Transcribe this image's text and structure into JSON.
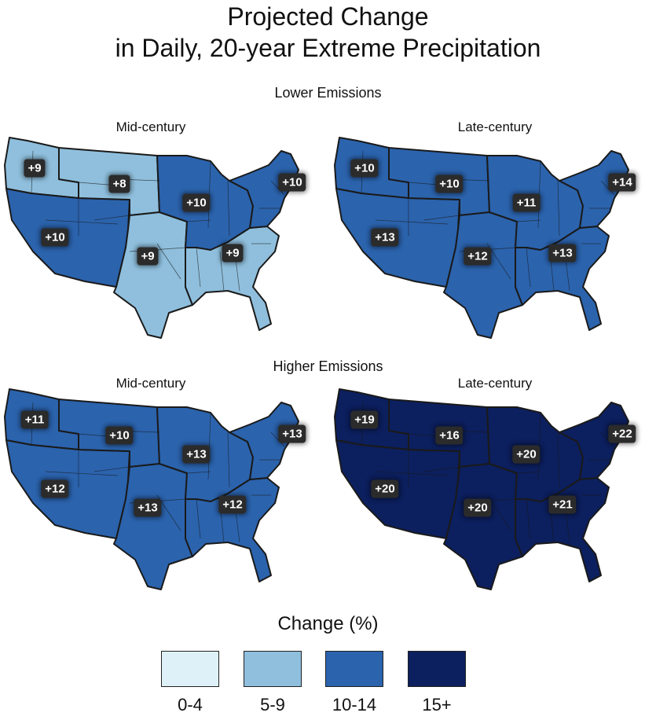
{
  "title_line1": "Projected Change",
  "title_line2": "in Daily, 20-year Extreme Precipitation",
  "scenarios": {
    "lower": "Lower Emissions",
    "higher": "Higher Emissions"
  },
  "periods": {
    "mid": "Mid-century",
    "late": "Late-century"
  },
  "colors": {
    "c0_4": "#dff1f8",
    "c5_9": "#8fbfdd",
    "c10_14": "#2b63ad",
    "c15": "#0c1f5e"
  },
  "maps": {
    "lower_mid": {
      "regions": {
        "northwest": "c5_9",
        "southwest": "c10_14",
        "great_plains_north": "c5_9",
        "great_plains_south": "c5_9",
        "midwest": "c10_14",
        "southeast": "c5_9",
        "northeast": "c10_14"
      },
      "labels": {
        "northwest": "+9",
        "southwest": "+10",
        "great_plains_north": "+8",
        "great_plains_south": "+9",
        "midwest": "+10",
        "southeast": "+9",
        "northeast": "+10"
      }
    },
    "lower_late": {
      "regions": {
        "northwest": "c10_14",
        "southwest": "c10_14",
        "great_plains_north": "c10_14",
        "great_plains_south": "c10_14",
        "midwest": "c10_14",
        "southeast": "c10_14",
        "northeast": "c10_14"
      },
      "labels": {
        "northwest": "+10",
        "southwest": "+13",
        "great_plains_north": "+10",
        "great_plains_south": "+12",
        "midwest": "+11",
        "southeast": "+13",
        "northeast": "+14"
      }
    },
    "higher_mid": {
      "regions": {
        "northwest": "c10_14",
        "southwest": "c10_14",
        "great_plains_north": "c10_14",
        "great_plains_south": "c10_14",
        "midwest": "c10_14",
        "southeast": "c10_14",
        "northeast": "c10_14"
      },
      "labels": {
        "northwest": "+11",
        "southwest": "+12",
        "great_plains_north": "+10",
        "great_plains_south": "+13",
        "midwest": "+13",
        "southeast": "+12",
        "northeast": "+13"
      }
    },
    "higher_late": {
      "regions": {
        "northwest": "c15",
        "southwest": "c15",
        "great_plains_north": "c15",
        "great_plains_south": "c15",
        "midwest": "c15",
        "southeast": "c15",
        "northeast": "c15"
      },
      "labels": {
        "northwest": "+19",
        "southwest": "+20",
        "great_plains_north": "+16",
        "great_plains_south": "+20",
        "midwest": "+20",
        "southeast": "+21",
        "northeast": "+22"
      }
    }
  },
  "legend": {
    "title": "Change (%)",
    "items": [
      {
        "label": "0-4",
        "color": "c0_4"
      },
      {
        "label": "5-9",
        "color": "c5_9"
      },
      {
        "label": "10-14",
        "color": "c10_14"
      },
      {
        "label": "15+",
        "color": "c15"
      }
    ]
  }
}
